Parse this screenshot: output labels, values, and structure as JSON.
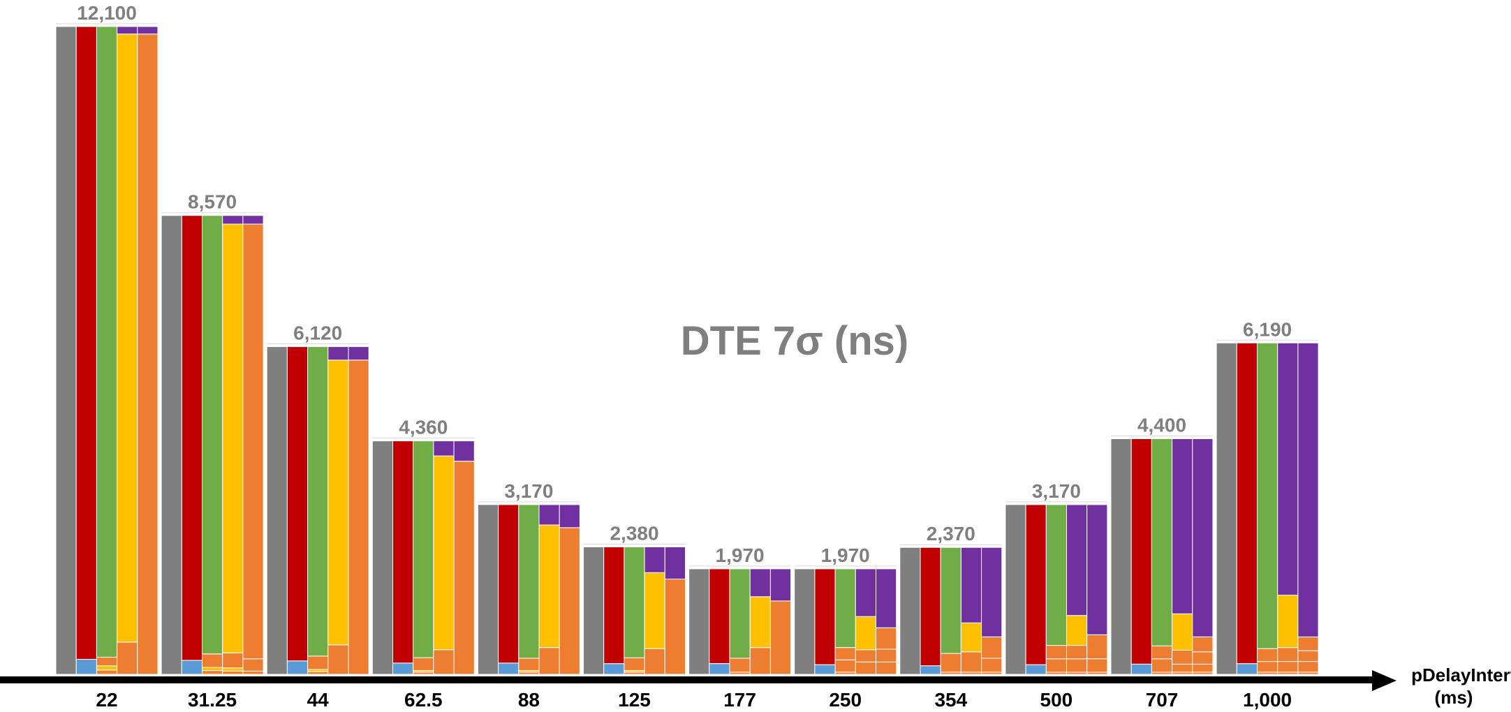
{
  "chart_data": {
    "type": "bar",
    "title": "DTE 7σ (ns)",
    "xlabel_line1": "pDelayInterval",
    "xlabel_line2": "(ms)",
    "categories": [
      "22",
      "31.25",
      "44",
      "62.5",
      "88",
      "125",
      "177",
      "250",
      "354",
      "500",
      "707",
      "1,000"
    ],
    "totals": [
      12100,
      8570,
      6120,
      4360,
      3170,
      2380,
      1970,
      1970,
      2370,
      3170,
      4400,
      6190
    ],
    "total_labels": [
      "12,100",
      "8,570",
      "6,120",
      "4,360",
      "3,170",
      "2,380",
      "1,970",
      "1,970",
      "2,370",
      "3,170",
      "4,400",
      "6,190"
    ],
    "colors": {
      "grey": "#7f7f7f",
      "red": "#c00000",
      "green": "#70ad47",
      "yellow": "#ffc000",
      "orange": "#ed7d31",
      "purple": "#7030a0",
      "blue": "#5b9bd5"
    },
    "bar_groups": [
      [
        [
          [
            "grey",
            12100
          ]
        ],
        [
          [
            "blue",
            280
          ],
          [
            "red",
            11820
          ]
        ],
        [
          [
            "orange",
            80
          ],
          [
            "yellow",
            80
          ],
          [
            "orange",
            160
          ],
          [
            "green",
            11780
          ]
        ],
        [
          [
            "orange",
            600
          ],
          [
            "yellow",
            11360
          ],
          [
            "purple",
            140
          ]
        ],
        [
          [
            "orange",
            11960
          ],
          [
            "purple",
            140
          ]
        ]
      ],
      [
        [
          [
            "grey",
            8570
          ]
        ],
        [
          [
            "blue",
            260
          ],
          [
            "red",
            8310
          ]
        ],
        [
          [
            "orange",
            70
          ],
          [
            "yellow",
            60
          ],
          [
            "orange",
            250
          ],
          [
            "green",
            8190
          ]
        ],
        [
          [
            "orange",
            60
          ],
          [
            "yellow",
            60
          ],
          [
            "orange",
            280
          ],
          [
            "yellow",
            8010
          ],
          [
            "purple",
            160
          ]
        ],
        [
          [
            "orange",
            60
          ],
          [
            "orange",
            230
          ],
          [
            "orange",
            8120
          ],
          [
            "purple",
            160
          ]
        ]
      ],
      [
        [
          [
            "grey",
            6120
          ]
        ],
        [
          [
            "blue",
            250
          ],
          [
            "red",
            5870
          ]
        ],
        [
          [
            "orange",
            50
          ],
          [
            "yellow",
            40
          ],
          [
            "orange",
            250
          ],
          [
            "green",
            5780
          ]
        ],
        [
          [
            "orange",
            550
          ],
          [
            "yellow",
            5320
          ],
          [
            "purple",
            250
          ]
        ],
        [
          [
            "orange",
            5870
          ],
          [
            "purple",
            250
          ]
        ]
      ],
      [
        [
          [
            "grey",
            4360
          ]
        ],
        [
          [
            "blue",
            210
          ],
          [
            "red",
            4150
          ]
        ],
        [
          [
            "orange",
            40
          ],
          [
            "yellow",
            30
          ],
          [
            "orange",
            240
          ],
          [
            "green",
            4050
          ]
        ],
        [
          [
            "orange",
            460
          ],
          [
            "yellow",
            3620
          ],
          [
            "purple",
            280
          ]
        ],
        [
          [
            "orange",
            3980
          ],
          [
            "purple",
            380
          ]
        ]
      ],
      [
        [
          [
            "grey",
            3170
          ]
        ],
        [
          [
            "blue",
            210
          ],
          [
            "red",
            2960
          ]
        ],
        [
          [
            "orange",
            40
          ],
          [
            "yellow",
            30
          ],
          [
            "orange",
            230
          ],
          [
            "green",
            2870
          ]
        ],
        [
          [
            "orange",
            500
          ],
          [
            "yellow",
            2290
          ],
          [
            "purple",
            380
          ]
        ],
        [
          [
            "orange",
            2740
          ],
          [
            "purple",
            430
          ]
        ]
      ],
      [
        [
          [
            "grey",
            2380
          ]
        ],
        [
          [
            "blue",
            200
          ],
          [
            "red",
            2180
          ]
        ],
        [
          [
            "orange",
            40
          ],
          [
            "yellow",
            30
          ],
          [
            "orange",
            240
          ],
          [
            "green",
            2070
          ]
        ],
        [
          [
            "orange",
            480
          ],
          [
            "yellow",
            1420
          ],
          [
            "purple",
            480
          ]
        ],
        [
          [
            "orange",
            1780
          ],
          [
            "purple",
            600
          ]
        ]
      ],
      [
        [
          [
            "grey",
            1970
          ]
        ],
        [
          [
            "blue",
            200
          ],
          [
            "red",
            1770
          ]
        ],
        [
          [
            "orange",
            40
          ],
          [
            "orange",
            260
          ],
          [
            "green",
            1670
          ]
        ],
        [
          [
            "orange",
            500
          ],
          [
            "yellow",
            950
          ],
          [
            "purple",
            520
          ]
        ],
        [
          [
            "orange",
            1370
          ],
          [
            "purple",
            600
          ]
        ]
      ],
      [
        [
          [
            "grey",
            1970
          ]
        ],
        [
          [
            "blue",
            180
          ],
          [
            "red",
            1790
          ]
        ],
        [
          [
            "orange",
            40
          ],
          [
            "orange",
            230
          ],
          [
            "orange",
            230
          ],
          [
            "green",
            1470
          ]
        ],
        [
          [
            "orange",
            230
          ],
          [
            "orange",
            230
          ],
          [
            "yellow",
            620
          ],
          [
            "purple",
            890
          ]
        ],
        [
          [
            "orange",
            230
          ],
          [
            "orange",
            240
          ],
          [
            "orange",
            400
          ],
          [
            "purple",
            1100
          ]
        ]
      ],
      [
        [
          [
            "grey",
            2370
          ]
        ],
        [
          [
            "blue",
            160
          ],
          [
            "red",
            2210
          ]
        ],
        [
          [
            "orange",
            40
          ],
          [
            "orange",
            350
          ],
          [
            "green",
            1980
          ]
        ],
        [
          [
            "orange",
            40
          ],
          [
            "orange",
            380
          ],
          [
            "yellow",
            540
          ],
          [
            "purple",
            1410
          ]
        ],
        [
          [
            "orange",
            40
          ],
          [
            "orange",
            260
          ],
          [
            "orange",
            400
          ],
          [
            "purple",
            1670
          ]
        ]
      ],
      [
        [
          [
            "grey",
            3170
          ]
        ],
        [
          [
            "blue",
            180
          ],
          [
            "red",
            2990
          ]
        ],
        [
          [
            "orange",
            40
          ],
          [
            "orange",
            250
          ],
          [
            "orange",
            250
          ],
          [
            "green",
            2630
          ]
        ],
        [
          [
            "orange",
            40
          ],
          [
            "orange",
            250
          ],
          [
            "orange",
            250
          ],
          [
            "yellow",
            560
          ],
          [
            "purple",
            2070
          ]
        ],
        [
          [
            "orange",
            40
          ],
          [
            "orange",
            250
          ],
          [
            "orange",
            450
          ],
          [
            "purple",
            2430
          ]
        ]
      ],
      [
        [
          [
            "grey",
            4400
          ]
        ],
        [
          [
            "blue",
            190
          ],
          [
            "red",
            4210
          ]
        ],
        [
          [
            "orange",
            40
          ],
          [
            "orange",
            250
          ],
          [
            "orange",
            240
          ],
          [
            "green",
            3870
          ]
        ],
        [
          [
            "orange",
            40
          ],
          [
            "orange",
            150
          ],
          [
            "orange",
            260
          ],
          [
            "yellow",
            680
          ],
          [
            "purple",
            3270
          ]
        ],
        [
          [
            "orange",
            40
          ],
          [
            "orange",
            150
          ],
          [
            "orange",
            230
          ],
          [
            "orange",
            280
          ],
          [
            "purple",
            3700
          ]
        ]
      ],
      [
        [
          [
            "grey",
            6190
          ]
        ],
        [
          [
            "blue",
            200
          ],
          [
            "red",
            5990
          ]
        ],
        [
          [
            "orange",
            40
          ],
          [
            "orange",
            200
          ],
          [
            "orange",
            240
          ],
          [
            "green",
            5710
          ]
        ],
        [
          [
            "orange",
            40
          ],
          [
            "orange",
            200
          ],
          [
            "orange",
            260
          ],
          [
            "yellow",
            980
          ],
          [
            "purple",
            4710
          ]
        ],
        [
          [
            "orange",
            40
          ],
          [
            "orange",
            200
          ],
          [
            "orange",
            200
          ],
          [
            "orange",
            260
          ],
          [
            "purple",
            5490
          ]
        ]
      ]
    ]
  }
}
